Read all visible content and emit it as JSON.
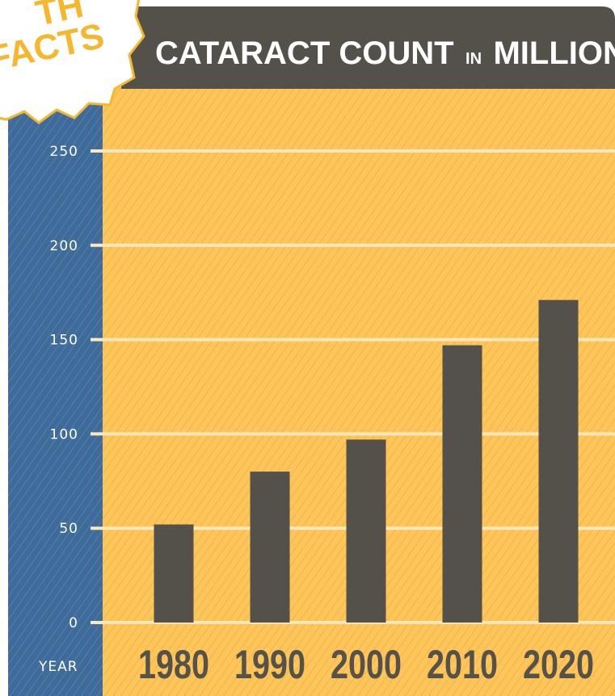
{
  "badge": {
    "text": "FACTS",
    "partial_text": "TH"
  },
  "header": {
    "title_part1": "CATARACT COUNT",
    "title_part2": "IN",
    "title_part3": "MILLIONS"
  },
  "axis": {
    "x_label": "YEAR"
  },
  "colors": {
    "plot_bg": "#fec55a",
    "axis_strip": "#3f6b9c",
    "header_bg": "#53514a",
    "bar": "#53514a",
    "gridline": "#fde7bc",
    "badge_accent": "#f7b72d"
  },
  "chart_data": {
    "type": "bar",
    "title": "CATARACT COUNT IN MILLIONS",
    "xlabel": "YEAR",
    "ylabel": "",
    "categories": [
      "1980",
      "1990",
      "2000",
      "2010",
      "2020"
    ],
    "values": [
      52,
      80,
      97,
      147,
      171
    ],
    "ylim": [
      0,
      250
    ],
    "yticks": [
      0,
      50,
      100,
      150,
      200,
      250
    ],
    "grid": true,
    "legend": "none"
  }
}
